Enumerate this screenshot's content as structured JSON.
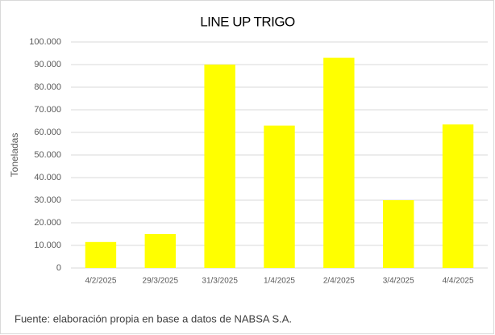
{
  "chart_data": {
    "type": "bar",
    "title": "LINE UP TRIGO",
    "y_label": "Toneladas",
    "source": "Fuente: elaboración propia en base a datos de NABSA S.A.",
    "categories": [
      "4/2/2025",
      "29/3/2025",
      "31/3/2025",
      "1/4/2025",
      "2/4/2025",
      "3/4/2025",
      "4/4/2025"
    ],
    "values": [
      11500,
      15000,
      90000,
      63000,
      93000,
      30000,
      63500
    ],
    "color": "#ffff00",
    "ylim": [
      0,
      100000
    ],
    "yticks": [
      0,
      {
        "value": 10000,
        "label": "10.000"
      },
      {
        "value": 20000,
        "label": "20.000"
      },
      {
        "value": 30000,
        "label": "30.000"
      },
      {
        "value": 40000,
        "label": "40.000"
      },
      {
        "value": 50000,
        "label": "50.000"
      },
      {
        "value": 60000,
        "label": "60.000"
      },
      {
        "value": 70000,
        "label": "70.000"
      },
      {
        "value": 80000,
        "label": "80.000"
      },
      {
        "value": 90000,
        "label": "90.000"
      },
      {
        "value": 100000,
        "label": "100.000"
      }
    ],
    "grid": true
  }
}
